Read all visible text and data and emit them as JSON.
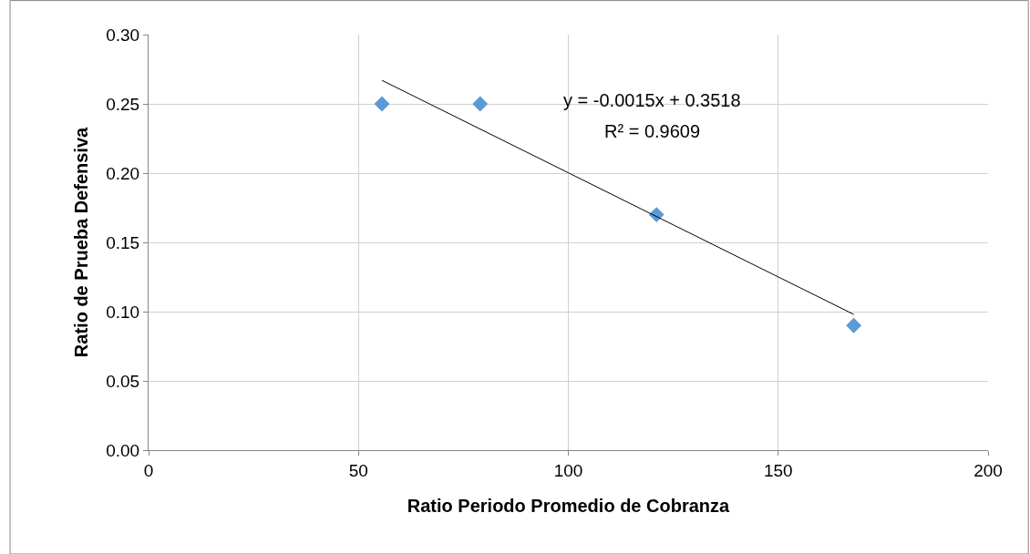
{
  "chart_data": {
    "type": "scatter",
    "xlabel": "Ratio Periodo Promedio de Cobranza",
    "ylabel": "Ratio de Prueba Defensiva",
    "series": [
      {
        "color": "#5b9bd5",
        "marker": "diamond",
        "x": [
          55.6,
          79,
          121,
          168
        ],
        "values": [
          0.25,
          0.25,
          0.17,
          0.09
        ]
      },
      {
        "type": "line",
        "color": "#000000",
        "marker": "none",
        "line_style": "solid",
        "x": [
          55.6,
          168
        ],
        "values": [
          0.267,
          0.098
        ]
      }
    ],
    "xlim": [
      0,
      200
    ],
    "xticks": [
      0,
      50,
      100,
      150,
      200
    ],
    "ylim": [
      0,
      0.3
    ],
    "yticks": [
      {
        "value": 0,
        "label": "0.00"
      },
      {
        "value": 0.05,
        "label": "0.05"
      },
      {
        "value": 0.1,
        "label": "0.10"
      },
      {
        "value": 0.15,
        "label": "0.15"
      },
      {
        "value": 0.2,
        "label": "0.20"
      },
      {
        "value": 0.25,
        "label": "0.25"
      },
      {
        "value": 0.3,
        "label": "0.30"
      }
    ],
    "grid": true,
    "legend": false,
    "annotations": [
      "y = -0.0015x + 0.3518",
      "R² = 0.9609"
    ]
  }
}
